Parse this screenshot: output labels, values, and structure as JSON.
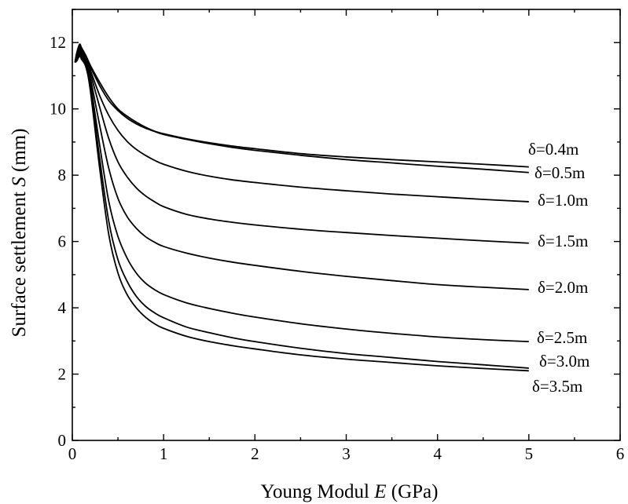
{
  "chart_data": {
    "type": "line",
    "xlabel": "Young Modul E (GPa)",
    "xlabel_parts": {
      "pre": "Young Modul ",
      "italic": "E",
      "post": " (GPa)"
    },
    "ylabel": "Surface settlement S (mm)",
    "ylabel_parts": {
      "pre": "Surface settlement ",
      "italic": "S",
      "post": " (mm)"
    },
    "xlim": [
      0,
      6
    ],
    "ylim": [
      0,
      13
    ],
    "x_ticks": [
      0,
      1,
      2,
      3,
      4,
      5,
      6
    ],
    "y_ticks": [
      0,
      2,
      4,
      6,
      8,
      10,
      12
    ],
    "grid": false,
    "legend": "inline labels at line ends",
    "x": [
      0.03,
      0.05,
      0.08,
      0.1,
      0.15,
      0.2,
      0.3,
      0.4,
      0.5,
      0.6,
      0.7,
      0.8,
      0.9,
      1.0,
      1.25,
      1.5,
      1.75,
      2.0,
      2.5,
      3.0,
      3.5,
      4.0,
      4.5,
      5.0
    ],
    "series": [
      {
        "name": "δ=0.4m",
        "values": [
          11.4,
          11.7,
          11.95,
          11.85,
          11.6,
          11.3,
          10.8,
          10.35,
          10.0,
          9.78,
          9.6,
          9.45,
          9.33,
          9.25,
          9.1,
          8.98,
          8.88,
          8.8,
          8.65,
          8.55,
          8.47,
          8.4,
          8.33,
          8.25
        ]
      },
      {
        "name": "δ=0.5m",
        "values": [
          11.4,
          11.7,
          11.9,
          11.8,
          11.55,
          11.25,
          10.7,
          10.25,
          9.95,
          9.72,
          9.55,
          9.42,
          9.32,
          9.23,
          9.08,
          8.95,
          8.84,
          8.75,
          8.6,
          8.47,
          8.37,
          8.27,
          8.18,
          8.08
        ]
      },
      {
        "name": "δ=1.0m",
        "values": [
          11.4,
          11.65,
          11.85,
          11.75,
          11.5,
          11.15,
          10.4,
          9.8,
          9.35,
          9.02,
          8.78,
          8.6,
          8.45,
          8.33,
          8.12,
          7.97,
          7.86,
          7.78,
          7.64,
          7.53,
          7.43,
          7.35,
          7.27,
          7.2
        ]
      },
      {
        "name": "δ=1.5m",
        "values": [
          11.4,
          11.6,
          11.8,
          11.7,
          11.45,
          11.05,
          10.05,
          9.1,
          8.4,
          7.95,
          7.62,
          7.38,
          7.2,
          7.05,
          6.82,
          6.68,
          6.58,
          6.5,
          6.37,
          6.27,
          6.18,
          6.1,
          6.02,
          5.95
        ]
      },
      {
        "name": "δ=2.0m",
        "values": [
          11.4,
          11.55,
          11.75,
          11.65,
          11.4,
          10.9,
          9.5,
          8.2,
          7.3,
          6.75,
          6.4,
          6.15,
          5.98,
          5.85,
          5.65,
          5.5,
          5.38,
          5.28,
          5.1,
          4.95,
          4.82,
          4.7,
          4.62,
          4.55
        ]
      },
      {
        "name": "δ=2.5m",
        "values": [
          11.4,
          11.5,
          11.7,
          11.6,
          11.35,
          10.75,
          8.9,
          7.2,
          6.15,
          5.5,
          5.05,
          4.75,
          4.55,
          4.4,
          4.15,
          3.98,
          3.84,
          3.72,
          3.52,
          3.36,
          3.23,
          3.12,
          3.04,
          2.98
        ]
      },
      {
        "name": "δ=3.0m",
        "values": [
          11.4,
          11.48,
          11.65,
          11.55,
          11.3,
          10.6,
          8.5,
          6.6,
          5.45,
          4.8,
          4.35,
          4.05,
          3.85,
          3.7,
          3.42,
          3.25,
          3.1,
          2.98,
          2.78,
          2.62,
          2.5,
          2.38,
          2.28,
          2.18
        ]
      },
      {
        "name": "δ=3.5m",
        "values": [
          11.4,
          11.45,
          11.6,
          11.5,
          11.25,
          10.5,
          8.2,
          6.2,
          5.05,
          4.4,
          4.0,
          3.72,
          3.52,
          3.38,
          3.14,
          2.98,
          2.86,
          2.76,
          2.58,
          2.45,
          2.35,
          2.25,
          2.17,
          2.1
        ]
      }
    ]
  }
}
